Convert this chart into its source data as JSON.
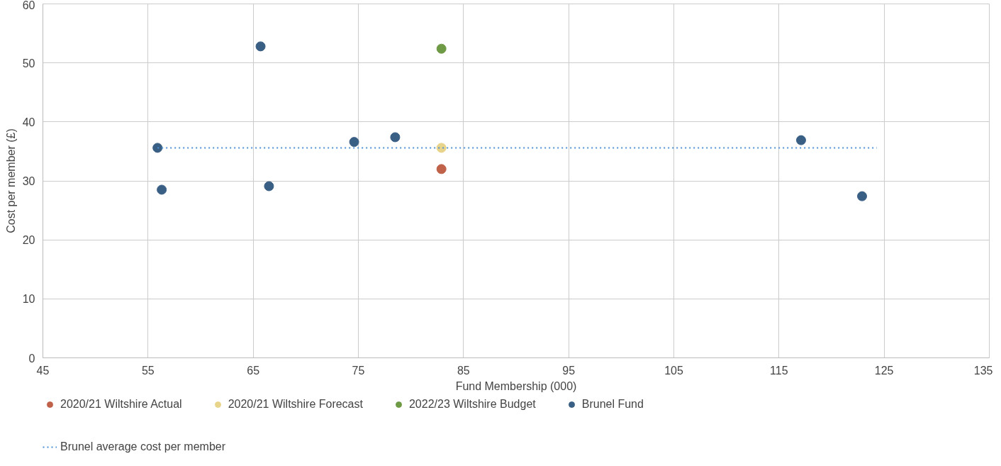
{
  "chart_data": {
    "type": "scatter",
    "xlabel": "Fund Membership (000)",
    "ylabel": "Cost per member (£)",
    "xlim": [
      45,
      135
    ],
    "xticks": [
      45,
      55,
      65,
      75,
      85,
      95,
      105,
      115,
      125,
      135
    ],
    "ylim": [
      0,
      60
    ],
    "yticks": [
      0,
      10,
      20,
      30,
      40,
      50,
      60
    ],
    "grid": true,
    "legend": "bottom",
    "marker": "circle",
    "series": [
      {
        "name": "2020/21 Wiltshire Actual",
        "color": "#c0614a",
        "x": [
          82.9
        ],
        "values": [
          32.0
        ]
      },
      {
        "name": "2020/21 Wiltshire Forecast",
        "color": "#e8d48a",
        "x": [
          82.9
        ],
        "values": [
          35.6
        ]
      },
      {
        "name": "2022/23 Wiltshire Budget",
        "color": "#6f9a45",
        "x": [
          82.9
        ],
        "values": [
          52.4
        ]
      },
      {
        "name": "Brunel Fund",
        "color": "#3a5f85",
        "x": [
          55.9,
          56.3,
          65.7,
          66.5,
          74.6,
          78.5,
          117.1,
          122.9
        ],
        "values": [
          35.6,
          28.5,
          52.8,
          29.1,
          36.6,
          37.4,
          36.9,
          27.4
        ]
      },
      {
        "name": "Brunel average cost per member",
        "type": "line",
        "line_style": "dotted",
        "marker": "none",
        "color": "#4a8fd4",
        "x": [
          55.9,
          124.3
        ],
        "values": [
          35.6,
          35.6
        ]
      }
    ]
  }
}
